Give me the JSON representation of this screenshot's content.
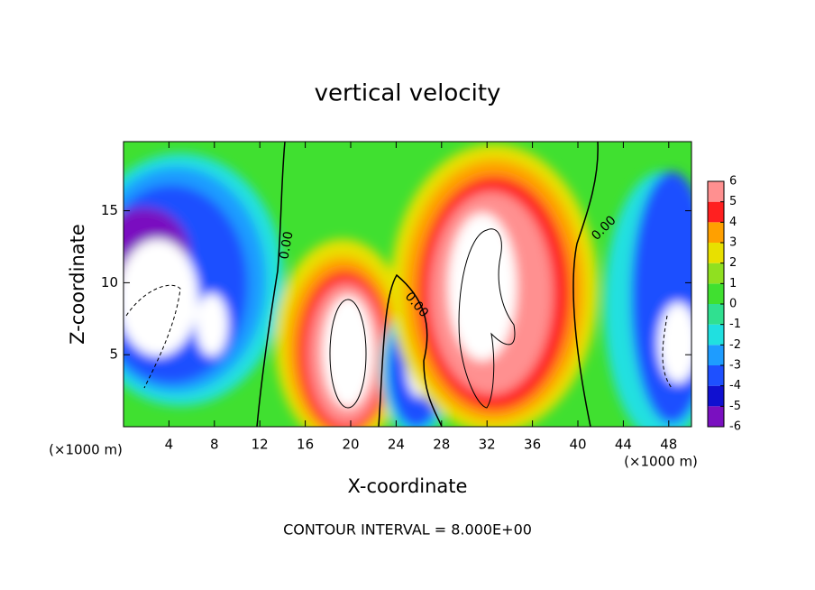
{
  "chart_data": {
    "type": "contour",
    "title": "vertical velocity",
    "x_label": "X-coordinate",
    "y_label": "Z-coordinate",
    "x_unit": "(×1000 m)",
    "xlim": [
      0,
      50
    ],
    "xticks": [
      4,
      8,
      12,
      16,
      20,
      24,
      28,
      32,
      36,
      40,
      44,
      48
    ],
    "ylim": [
      0,
      19.8
    ],
    "yticks": [
      5,
      10,
      15
    ],
    "grid": false,
    "contour_labels": [
      "0.00",
      "0.00",
      "0.00"
    ],
    "footer": "CONTOUR INTERVAL = 8.000E+00",
    "colorbar": {
      "ticks": [
        -6,
        -5,
        -4,
        -3,
        -2,
        -1,
        0,
        1,
        2,
        3,
        4,
        5,
        6
      ],
      "colors": [
        "#7a10c0",
        "#1010d0",
        "#1e50ff",
        "#1e9cff",
        "#20e0e0",
        "#30e090",
        "#40e030",
        "#90e020",
        "#e8e000",
        "#ffa000",
        "#ff2020",
        "#ff9090"
      ]
    }
  }
}
